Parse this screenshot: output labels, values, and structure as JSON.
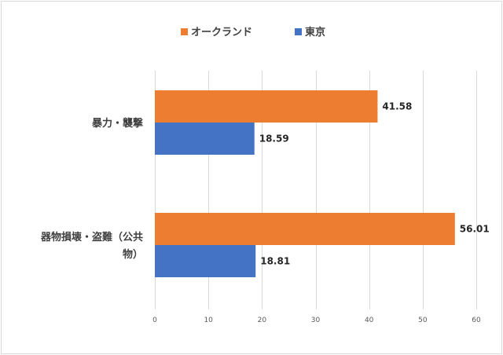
{
  "chart_data": {
    "type": "bar",
    "orientation": "horizontal",
    "categories": [
      [
        "暴力・襲撃"
      ],
      [
        "器物損壊・盗難（公共",
        "物）"
      ]
    ],
    "series": [
      {
        "name": "オークランド",
        "color": "#ed7d31",
        "values": [
          41.58,
          56.01
        ]
      },
      {
        "name": "東京",
        "color": "#4472c4",
        "values": [
          18.59,
          18.81
        ]
      }
    ],
    "value_labels": [
      [
        "41.58",
        "56.01"
      ],
      [
        "18.59",
        "18.81"
      ]
    ],
    "xlim": [
      0,
      60
    ],
    "x_ticks": [
      "0",
      "10",
      "20",
      "30",
      "40",
      "50",
      "60"
    ],
    "x_tick_values": [
      0,
      10,
      20,
      30,
      40,
      50,
      60
    ],
    "grid": true,
    "legend_position": "top-center",
    "title": "",
    "xlabel": "",
    "ylabel": ""
  }
}
